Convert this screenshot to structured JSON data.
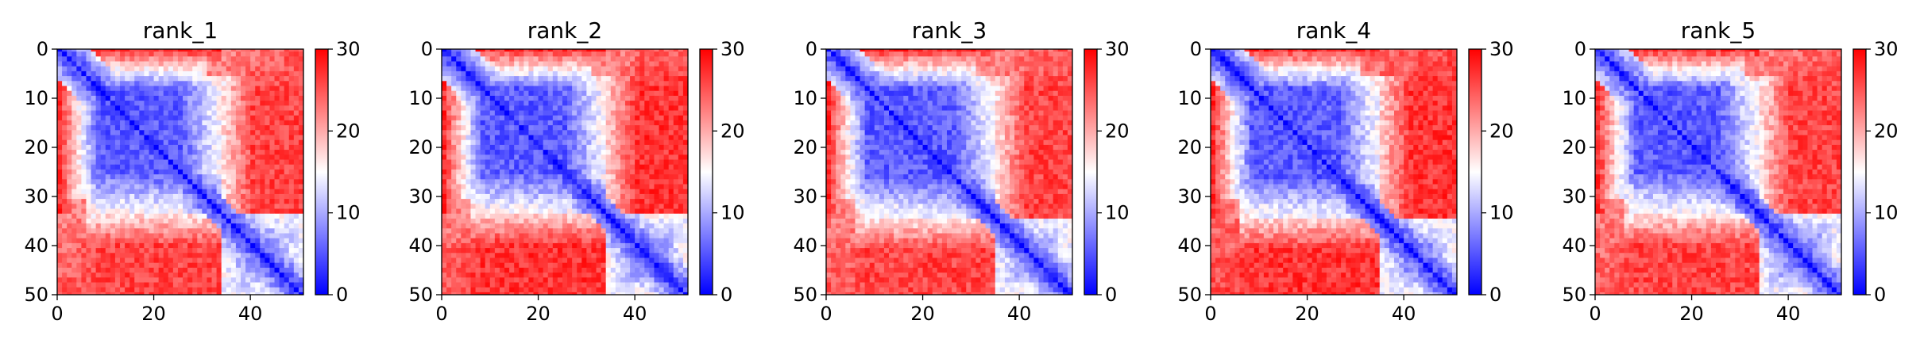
{
  "figure": {
    "panel_count": 5
  },
  "colormap": {
    "name": "bwr",
    "low": "#0000ff",
    "mid": "#ffffff",
    "high": "#ff0000",
    "range": [
      0,
      30
    ]
  },
  "chart_data": [
    {
      "type": "heatmap",
      "title": "rank_1",
      "xlabel": "",
      "ylabel": "",
      "x_ticks": [
        0,
        20,
        40
      ],
      "y_ticks": [
        0,
        10,
        20,
        30,
        40,
        50
      ],
      "xlim": [
        0,
        51
      ],
      "ylim": [
        50,
        0
      ],
      "matrix_size": 51,
      "colorbar": {
        "ticks": [
          0,
          10,
          20,
          30
        ],
        "range": [
          0,
          30
        ]
      },
      "structure": {
        "domain_1": [
          0,
          34
        ],
        "domain_2": [
          34,
          51
        ],
        "diagonal_value": 0,
        "within_domain_value": 5,
        "between_domain_value": 26,
        "corner_value": 22,
        "seed": 11
      }
    },
    {
      "type": "heatmap",
      "title": "rank_2",
      "xlabel": "",
      "ylabel": "",
      "x_ticks": [
        0,
        20,
        40
      ],
      "y_ticks": [
        0,
        10,
        20,
        30,
        40,
        50
      ],
      "xlim": [
        0,
        51
      ],
      "ylim": [
        50,
        0
      ],
      "matrix_size": 51,
      "colorbar": {
        "ticks": [
          0,
          10,
          20,
          30
        ],
        "range": [
          0,
          30
        ]
      },
      "structure": {
        "domain_1": [
          0,
          34
        ],
        "domain_2": [
          34,
          51
        ],
        "diagonal_value": 0,
        "within_domain_value": 5,
        "between_domain_value": 27,
        "corner_value": 22,
        "seed": 23
      }
    },
    {
      "type": "heatmap",
      "title": "rank_3",
      "xlabel": "",
      "ylabel": "",
      "x_ticks": [
        0,
        20,
        40
      ],
      "y_ticks": [
        0,
        10,
        20,
        30,
        40,
        50
      ],
      "xlim": [
        0,
        51
      ],
      "ylim": [
        50,
        0
      ],
      "matrix_size": 51,
      "colorbar": {
        "ticks": [
          0,
          10,
          20,
          30
        ],
        "range": [
          0,
          30
        ]
      },
      "structure": {
        "domain_1": [
          0,
          35
        ],
        "domain_2": [
          35,
          51
        ],
        "diagonal_value": 0,
        "within_domain_value": 5,
        "between_domain_value": 26,
        "corner_value": 22,
        "seed": 37
      }
    },
    {
      "type": "heatmap",
      "title": "rank_4",
      "xlabel": "",
      "ylabel": "",
      "x_ticks": [
        0,
        20,
        40
      ],
      "y_ticks": [
        0,
        10,
        20,
        30,
        40,
        50
      ],
      "xlim": [
        0,
        51
      ],
      "ylim": [
        50,
        0
      ],
      "matrix_size": 51,
      "colorbar": {
        "ticks": [
          0,
          10,
          20,
          30
        ],
        "range": [
          0,
          30
        ]
      },
      "structure": {
        "domain_1": [
          0,
          35
        ],
        "domain_2": [
          35,
          51
        ],
        "diagonal_value": 0,
        "within_domain_value": 5,
        "between_domain_value": 27,
        "corner_value": 23,
        "seed": 51
      }
    },
    {
      "type": "heatmap",
      "title": "rank_5",
      "xlabel": "",
      "ylabel": "",
      "x_ticks": [
        0,
        20,
        40
      ],
      "y_ticks": [
        0,
        10,
        20,
        30,
        40,
        50
      ],
      "xlim": [
        0,
        51
      ],
      "ylim": [
        50,
        0
      ],
      "matrix_size": 51,
      "colorbar": {
        "ticks": [
          0,
          10,
          20,
          30
        ],
        "range": [
          0,
          30
        ]
      },
      "structure": {
        "domain_1": [
          0,
          34
        ],
        "domain_2": [
          34,
          51
        ],
        "diagonal_value": 0,
        "within_domain_value": 5,
        "between_domain_value": 26,
        "corner_value": 22,
        "seed": 67
      }
    }
  ]
}
